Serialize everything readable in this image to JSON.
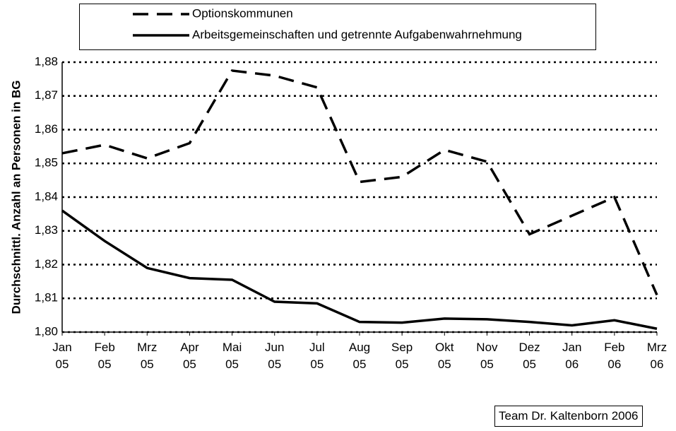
{
  "chart_data": {
    "type": "line",
    "y_label": "Durchschnittl. Anzahl an Personen in BG",
    "source": "Team Dr. Kaltenborn 2006",
    "categories": [
      "Jan 05",
      "Feb 05",
      "Mrz 05",
      "Apr 05",
      "Mai 05",
      "Jun 05",
      "Jul 05",
      "Aug 05",
      "Sep 05",
      "Okt 05",
      "Nov 05",
      "Dez 05",
      "Jan 06",
      "Feb 06",
      "Mrz 06"
    ],
    "series": [
      {
        "name": "Optionskommunen",
        "color": "#000000",
        "dash": "dashed",
        "values": [
          1.853,
          1.8555,
          1.8515,
          1.856,
          1.8775,
          1.876,
          1.8725,
          1.8445,
          1.846,
          1.854,
          1.8505,
          1.829,
          1.8345,
          1.84,
          1.811
        ]
      },
      {
        "name": "Arbeitsgemeinschaften und getrennte Aufgabenwahrnehmung",
        "color": "#000000",
        "dash": "solid",
        "values": [
          1.836,
          1.827,
          1.819,
          1.816,
          1.8155,
          1.809,
          1.8085,
          1.803,
          1.8028,
          1.804,
          1.8038,
          1.803,
          1.802,
          1.8035,
          1.801
        ]
      }
    ],
    "ylim": [
      1.8,
      1.88
    ],
    "yticks": [
      {
        "value": 1.8,
        "label": "1,80"
      },
      {
        "value": 1.81,
        "label": "1,81"
      },
      {
        "value": 1.82,
        "label": "1,82"
      },
      {
        "value": 1.83,
        "label": "1,83"
      },
      {
        "value": 1.84,
        "label": "1,84"
      },
      {
        "value": 1.85,
        "label": "1,85"
      },
      {
        "value": 1.86,
        "label": "1,86"
      },
      {
        "value": 1.87,
        "label": "1,87"
      },
      {
        "value": 1.88,
        "label": "1,88"
      }
    ],
    "grid": true
  }
}
